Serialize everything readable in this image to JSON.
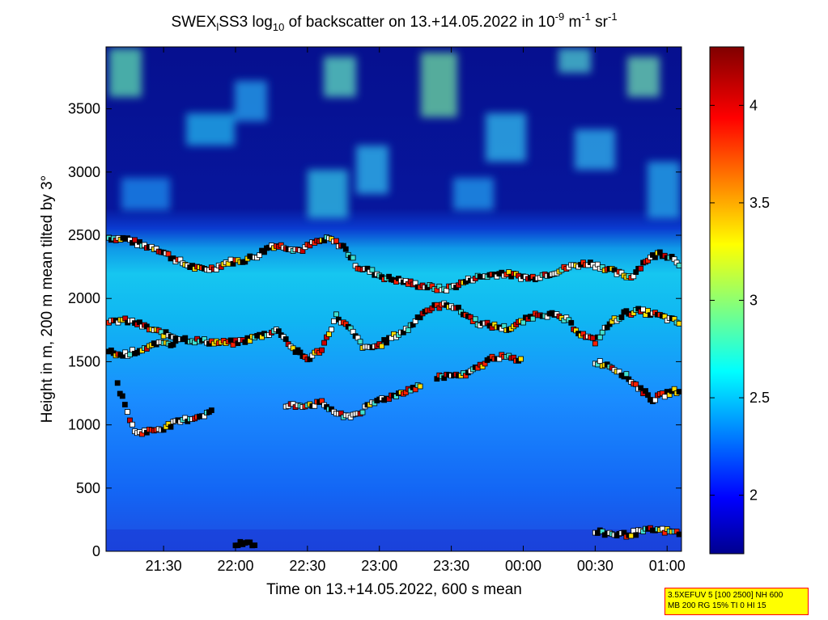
{
  "chart_data": {
    "type": "heatmap",
    "title": {
      "p1": "SWEX",
      "p1_sub": "l",
      "p2": "SS3 log",
      "p2_sub": "10",
      "p3": " of backscatter on 13.+14.05.2022 in 10",
      "sup1": "-9",
      "p4": " m",
      "sup2": "-1",
      "p5": " sr",
      "sup3": "-1"
    },
    "xlabel": "Time on 13.+14.05.2022, 600 s mean",
    "ylabel": "Height in m, 200 m mean tilted by 3°",
    "x_ticks": [
      "21:30",
      "22:00",
      "22:30",
      "23:00",
      "23:30",
      "00:00",
      "00:30",
      "01:00"
    ],
    "x_tick_hours": [
      21.5,
      22.0,
      22.5,
      23.0,
      23.5,
      24.0,
      24.5,
      25.0
    ],
    "xlim_hours": [
      21.1,
      25.1
    ],
    "y_ticks": [
      0,
      500,
      1000,
      1500,
      2000,
      2500,
      3000,
      3500
    ],
    "ylim": [
      0,
      3990
    ],
    "colorbar": {
      "ticks": [
        2,
        2.5,
        3,
        3.5,
        4
      ],
      "range": [
        1.7,
        4.3
      ],
      "colormap": "jet"
    },
    "cloud_layers": [
      {
        "name": "cloud-top",
        "points": [
          [
            21.12,
            2480
          ],
          [
            21.25,
            2470
          ],
          [
            21.35,
            2420
          ],
          [
            21.45,
            2400
          ],
          [
            21.55,
            2330
          ],
          [
            21.65,
            2270
          ],
          [
            21.75,
            2230
          ],
          [
            21.85,
            2240
          ],
          [
            21.95,
            2290
          ],
          [
            22.05,
            2300
          ],
          [
            22.15,
            2340
          ],
          [
            22.25,
            2420
          ],
          [
            22.35,
            2410
          ],
          [
            22.45,
            2380
          ],
          [
            22.55,
            2440
          ],
          [
            22.65,
            2470
          ],
          [
            22.75,
            2410
          ],
          [
            22.85,
            2250
          ],
          [
            22.95,
            2210
          ],
          [
            23.05,
            2160
          ],
          [
            23.15,
            2140
          ],
          [
            23.25,
            2110
          ],
          [
            23.35,
            2090
          ],
          [
            23.45,
            2070
          ],
          [
            23.55,
            2110
          ],
          [
            23.65,
            2160
          ],
          [
            23.75,
            2180
          ],
          [
            23.85,
            2200
          ],
          [
            23.95,
            2180
          ],
          [
            24.05,
            2160
          ],
          [
            24.15,
            2190
          ],
          [
            24.25,
            2220
          ],
          [
            24.35,
            2260
          ],
          [
            24.45,
            2280
          ],
          [
            24.55,
            2250
          ],
          [
            24.65,
            2200
          ],
          [
            24.75,
            2170
          ],
          [
            24.85,
            2300
          ],
          [
            24.95,
            2360
          ],
          [
            25.05,
            2320
          ],
          [
            25.1,
            2260
          ]
        ]
      },
      {
        "name": "mid-layer-1",
        "points": [
          [
            21.12,
            1800
          ],
          [
            21.2,
            1830
          ],
          [
            21.3,
            1810
          ],
          [
            21.4,
            1760
          ],
          [
            21.5,
            1720
          ],
          [
            21.6,
            1690
          ],
          [
            21.7,
            1670
          ],
          [
            21.8,
            1660
          ],
          [
            21.9,
            1650
          ],
          [
            22.0,
            1650
          ],
          [
            22.1,
            1680
          ],
          [
            22.3,
            1750
          ],
          [
            22.4,
            1600
          ],
          [
            22.5,
            1520
          ],
          [
            22.6,
            1600
          ],
          [
            22.7,
            1860
          ],
          [
            22.8,
            1750
          ],
          [
            22.9,
            1600
          ],
          [
            23.0,
            1630
          ],
          [
            23.1,
            1700
          ],
          [
            23.2,
            1760
          ],
          [
            23.3,
            1890
          ],
          [
            23.4,
            1940
          ],
          [
            23.5,
            1950
          ],
          [
            23.6,
            1870
          ],
          [
            23.7,
            1800
          ],
          [
            23.8,
            1780
          ],
          [
            23.9,
            1760
          ],
          [
            24.0,
            1820
          ],
          [
            24.1,
            1880
          ],
          [
            24.2,
            1870
          ],
          [
            24.3,
            1830
          ],
          [
            24.4,
            1720
          ],
          [
            24.5,
            1660
          ],
          [
            24.6,
            1800
          ],
          [
            24.7,
            1880
          ],
          [
            24.8,
            1900
          ],
          [
            24.9,
            1880
          ],
          [
            25.0,
            1840
          ],
          [
            25.1,
            1800
          ]
        ]
      },
      {
        "name": "mid-layer-2",
        "points": [
          [
            21.12,
            1580
          ],
          [
            21.2,
            1550
          ],
          [
            21.3,
            1580
          ],
          [
            21.4,
            1620
          ],
          [
            21.5,
            1640
          ],
          [
            21.6,
            1650
          ],
          [
            23.4,
            1380
          ],
          [
            23.5,
            1390
          ],
          [
            23.6,
            1390
          ],
          [
            23.8,
            1540
          ],
          [
            23.9,
            1530
          ],
          [
            24.0,
            1510
          ],
          [
            24.5,
            1500
          ],
          [
            24.6,
            1470
          ],
          [
            24.7,
            1400
          ],
          [
            24.8,
            1300
          ],
          [
            24.9,
            1200
          ],
          [
            25.0,
            1250
          ],
          [
            25.1,
            1280
          ]
        ]
      },
      {
        "name": "low-layer",
        "points": [
          [
            21.18,
            1320
          ],
          [
            21.3,
            940
          ],
          [
            21.4,
            950
          ],
          [
            21.5,
            980
          ],
          [
            21.65,
            1040
          ],
          [
            21.75,
            1070
          ],
          [
            21.85,
            1110
          ],
          [
            22.35,
            1150
          ],
          [
            22.5,
            1160
          ],
          [
            22.6,
            1170
          ],
          [
            22.75,
            1060
          ],
          [
            22.85,
            1090
          ],
          [
            23.0,
            1200
          ],
          [
            23.1,
            1230
          ],
          [
            23.2,
            1280
          ],
          [
            23.3,
            1310
          ],
          [
            24.5,
            150
          ],
          [
            24.6,
            140
          ],
          [
            24.7,
            130
          ],
          [
            24.8,
            150
          ],
          [
            24.9,
            170
          ],
          [
            25.0,
            160
          ],
          [
            25.1,
            140
          ]
        ]
      },
      {
        "name": "low-echo",
        "points": [
          [
            22.0,
            60
          ],
          [
            22.05,
            60
          ],
          [
            22.1,
            60
          ],
          [
            22.15,
            60
          ]
        ]
      }
    ]
  },
  "info_box": {
    "line1": "3.5XEFUV 5 [100 2500] NH 600",
    "line2": "MB 200 RG 15% TI 0 HI 15"
  }
}
